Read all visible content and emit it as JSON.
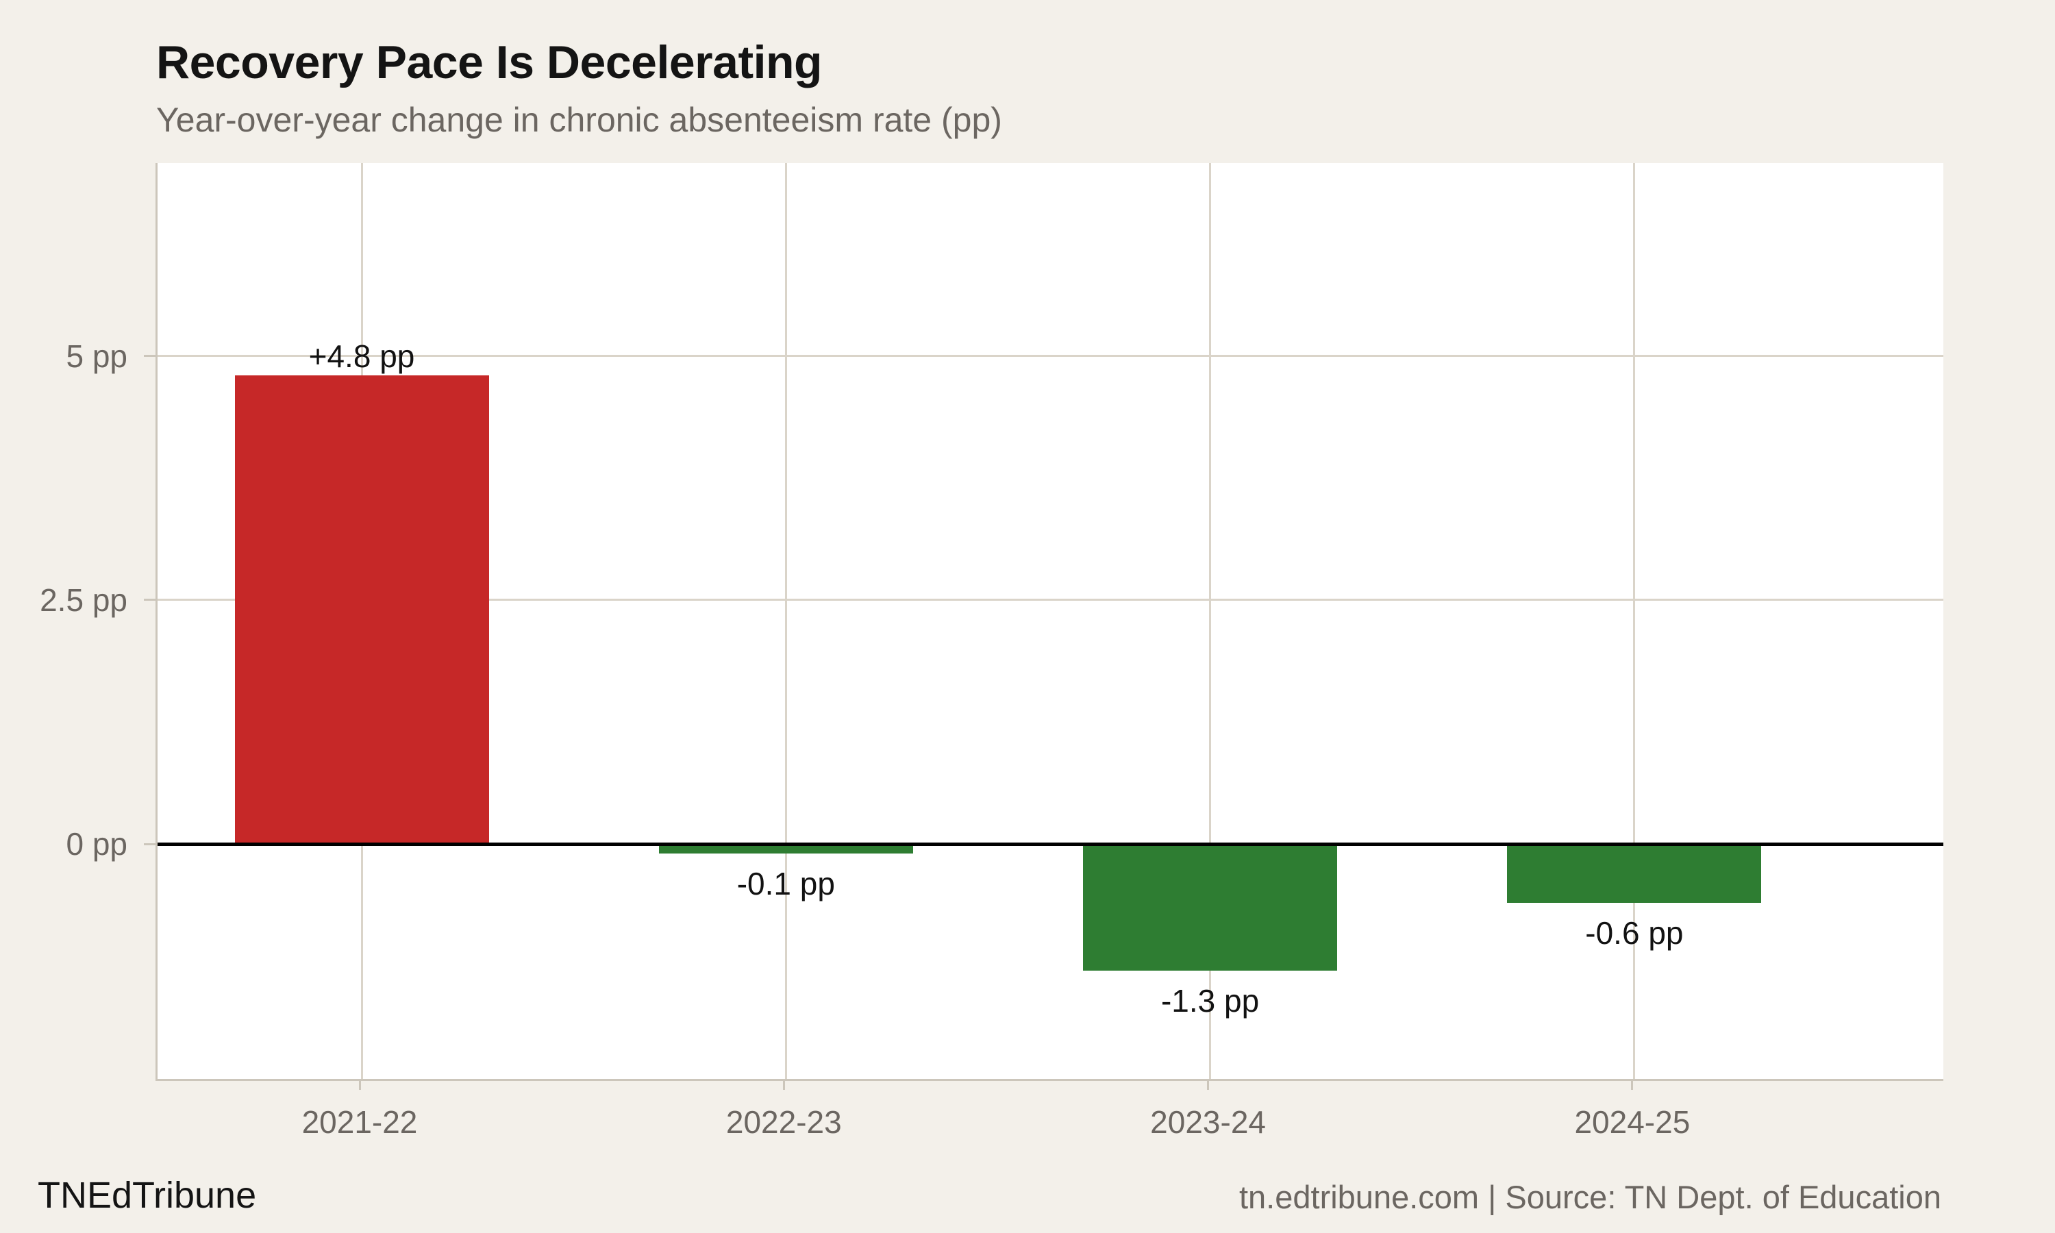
{
  "title": "Recovery Pace Is Decelerating",
  "subtitle": "Year-over-year change in chronic absenteeism rate (pp)",
  "footer": {
    "left": "TNEdTribune",
    "right": "tn.edtribune.com | Source: TN Dept. of Education"
  },
  "colors": {
    "background": "#F3F0EA",
    "plot_background": "#FFFFFF",
    "positive_bar": "#C62828",
    "negative_bar": "#2E7D32",
    "gridline": "#DAD4C9",
    "axis_spine": "#CCC6BB",
    "zero_line": "#000000",
    "title_text": "#141414",
    "muted_text": "#6B6661",
    "bar_label_text": "#121212"
  },
  "chart_data": {
    "type": "bar",
    "categories": [
      "2021-22",
      "2022-23",
      "2023-24",
      "2024-25"
    ],
    "values": [
      4.8,
      -0.1,
      -1.3,
      -0.6
    ],
    "bar_labels": [
      "+4.8 pp",
      "-0.1 pp",
      "-1.3 pp",
      "-0.6 pp"
    ],
    "title": "Recovery Pace Is Decelerating",
    "subtitle": "Year-over-year change in chronic absenteeism rate (pp)",
    "xlabel": "",
    "ylabel": "",
    "y_ticks": [
      {
        "value": 0,
        "label": "0 pp"
      },
      {
        "value": 2.5,
        "label": "2.5 pp"
      },
      {
        "value": 5,
        "label": "5 pp"
      }
    ],
    "ylim": [
      -2.4,
      7.0
    ],
    "grid": true,
    "zero_line": true,
    "legend": "none",
    "color_rule": "positive bars red, negative bars green"
  }
}
